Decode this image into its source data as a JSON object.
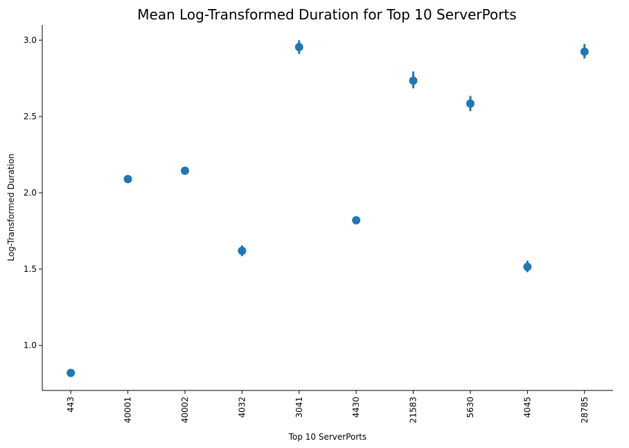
{
  "chart_data": {
    "type": "scatter",
    "title": "Mean Log-Transformed Duration for Top 10 ServerPorts",
    "xlabel": "Top 10 ServerPorts",
    "ylabel": "Log-Transformed Duration",
    "categories": [
      "443",
      "40001",
      "40002",
      "4032",
      "3041",
      "4430",
      "21583",
      "5630",
      "4045",
      "28785"
    ],
    "values": [
      0.82,
      2.09,
      2.145,
      1.62,
      2.955,
      1.82,
      2.735,
      2.585,
      1.515,
      2.925
    ],
    "error_low": [
      0.81,
      2.07,
      2.12,
      1.585,
      2.91,
      1.8,
      2.685,
      2.535,
      1.48,
      2.88
    ],
    "error_high": [
      0.83,
      2.115,
      2.17,
      1.655,
      3.0,
      1.845,
      2.795,
      2.635,
      1.555,
      2.975
    ],
    "yticks": [
      "1.0",
      "1.5",
      "2.0",
      "2.5",
      "3.0"
    ],
    "ylim": [
      0.705,
      3.1
    ],
    "x_tick_rotation": "vertical",
    "grid": false,
    "color": "#1f77b4"
  }
}
